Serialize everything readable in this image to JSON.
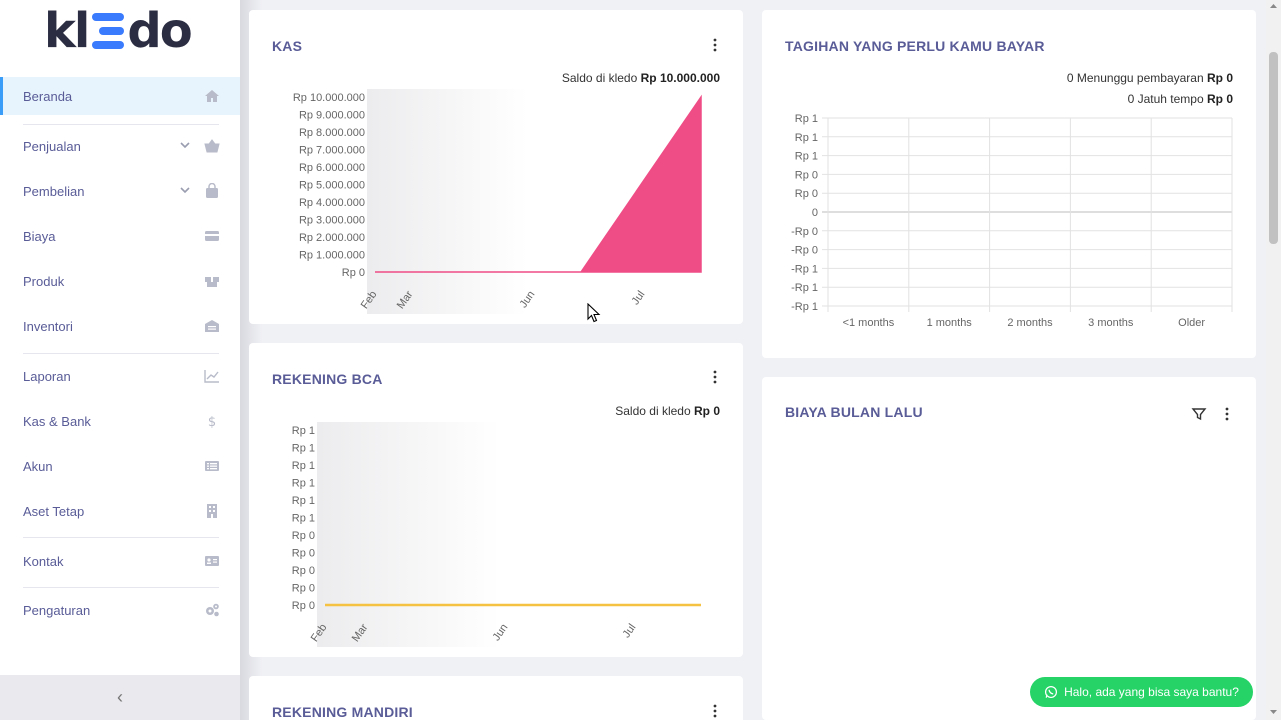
{
  "brand": {
    "logo_text_left": "kl",
    "logo_text_right": "do"
  },
  "sidebar": {
    "items": [
      {
        "label": "Beranda",
        "icon": "home-icon",
        "active": true
      },
      {
        "label": "Penjualan",
        "icon": "basket-icon",
        "has_chevron": true
      },
      {
        "label": "Pembelian",
        "icon": "bag-icon",
        "has_chevron": true
      },
      {
        "label": "Biaya",
        "icon": "credit-card-icon"
      },
      {
        "label": "Produk",
        "icon": "boxes-icon"
      },
      {
        "label": "Inventori",
        "icon": "warehouse-icon"
      },
      {
        "label": "Laporan",
        "icon": "line-chart-icon"
      },
      {
        "label": "Kas & Bank",
        "icon": "dollar-icon"
      },
      {
        "label": "Akun",
        "icon": "list-icon"
      },
      {
        "label": "Aset Tetap",
        "icon": "building-icon"
      },
      {
        "label": "Kontak",
        "icon": "id-card-icon"
      },
      {
        "label": "Pengaturan",
        "icon": "cogs-icon"
      }
    ],
    "collapse_label": "‹"
  },
  "cards": {
    "kas": {
      "title": "KAS",
      "saldo_prefix": "Saldo di kledo",
      "saldo_value": "Rp 10.000.000"
    },
    "bca": {
      "title": "REKENING BCA",
      "saldo_prefix": "Saldo di kledo",
      "saldo_value": "Rp 0"
    },
    "mandiri": {
      "title": "REKENING MANDIRI"
    },
    "tagihan": {
      "title": "TAGIHAN YANG PERLU KAMU BAYAR",
      "menunggu_prefix": "0 Menunggu pembayaran",
      "menunggu_value": "Rp 0",
      "jatuh_prefix": "0 Jatuh tempo",
      "jatuh_value": "Rp 0"
    },
    "biaya": {
      "title": "BIAYA BULAN LALU"
    }
  },
  "chart_data": [
    {
      "type": "area",
      "name": "kas",
      "title": "KAS",
      "x_labels": [
        "Feb",
        "Mar",
        "Jun",
        "Jul"
      ],
      "y_ticks": [
        "Rp 10.000.000",
        "Rp 9.000.000",
        "Rp 8.000.000",
        "Rp 7.000.000",
        "Rp 6.000.000",
        "Rp 5.000.000",
        "Rp 4.000.000",
        "Rp 3.000.000",
        "Rp 2.000.000",
        "Rp 1.000.000",
        "Rp 0"
      ],
      "ylim": [
        0,
        10000000
      ],
      "series": [
        {
          "values": [
            0,
            0,
            0,
            10000000,
            10000000
          ],
          "color": "#ef4d86"
        }
      ]
    },
    {
      "type": "line",
      "name": "bca",
      "title": "REKENING BCA",
      "x_labels": [
        "Feb",
        "Mar",
        "Jun",
        "Jul"
      ],
      "y_ticks": [
        "Rp 1",
        "Rp 1",
        "Rp 1",
        "Rp 1",
        "Rp 1",
        "Rp 1",
        "Rp 0",
        "Rp 0",
        "Rp 0",
        "Rp 0",
        "Rp 0"
      ],
      "ylim": [
        0,
        1
      ],
      "series": [
        {
          "values": [
            0,
            0,
            0,
            0,
            0
          ],
          "color": "#f5c242"
        }
      ]
    },
    {
      "type": "bar",
      "name": "tagihan",
      "title": "TAGIHAN YANG PERLU KAMU BAYAR",
      "categories": [
        "<1 months",
        "1 months",
        "2 months",
        "3 months",
        "Older"
      ],
      "y_ticks": [
        "Rp 1",
        "Rp 1",
        "Rp 1",
        "Rp 0",
        "Rp 0",
        "0",
        "-Rp 0",
        "-Rp 0",
        "-Rp 1",
        "-Rp 1",
        "-Rp 1"
      ],
      "values": [
        0,
        0,
        0,
        0,
        0
      ],
      "grid": true
    }
  ],
  "chat_button": {
    "label": "Halo, ada yang bisa saya bantu?",
    "icon": "whatsapp-icon",
    "color": "#25d366"
  }
}
